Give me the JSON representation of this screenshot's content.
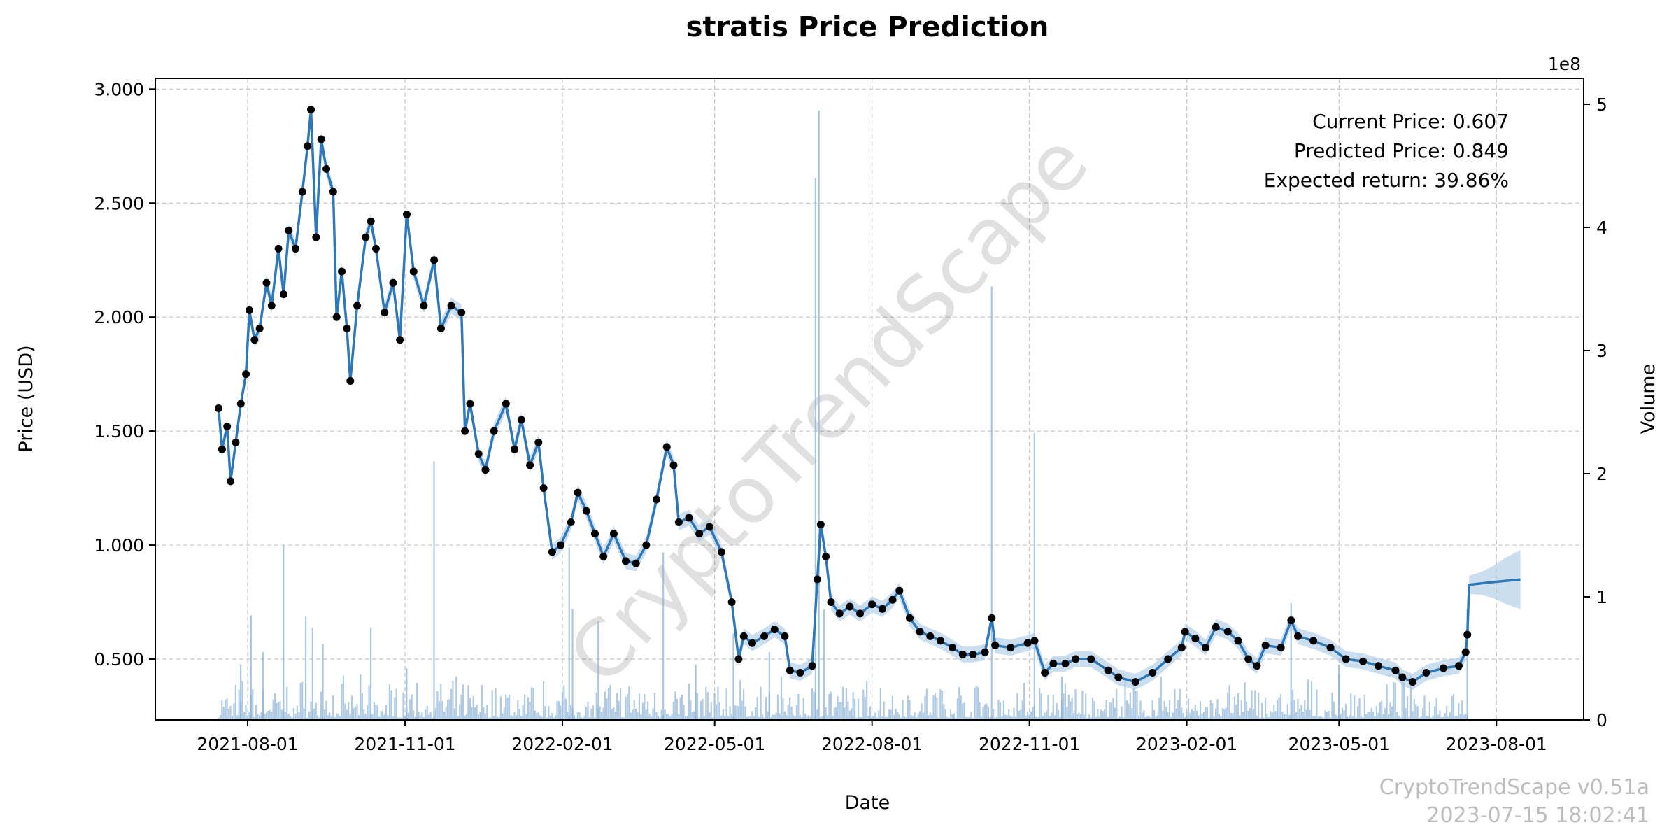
{
  "chart_data": {
    "type": "line",
    "title": "stratis Price Prediction",
    "xlabel": "Date",
    "ylabel": "Price (USD)",
    "y2label": "Volume",
    "y2_offset_label": "1e8",
    "xlim": [
      "2021-06-08",
      "2023-09-21"
    ],
    "ylim": [
      0.233,
      3.047
    ],
    "y2lim": [
      0,
      5.21
    ],
    "grid": true,
    "x_ticks": [
      "2021-08-01",
      "2021-11-01",
      "2022-02-01",
      "2022-05-01",
      "2022-08-01",
      "2022-11-01",
      "2023-02-01",
      "2023-05-01",
      "2023-08-01"
    ],
    "y_ticks": [
      "0.500",
      "1.000",
      "1.500",
      "2.000",
      "2.500",
      "3.000"
    ],
    "y_tick_values": [
      0.5,
      1.0,
      1.5,
      2.0,
      2.5,
      3.0
    ],
    "y2_ticks": [
      "0",
      "1",
      "2",
      "3",
      "4",
      "5"
    ],
    "annotations": [
      "Current Price: 0.607",
      "Predicted Price: 0.849",
      "Expected return: 39.86%"
    ],
    "watermark": "CryptoTrendScape",
    "footer": [
      "CryptoTrendScape v0.51a",
      "2023-07-15 18:02:41"
    ],
    "colors": {
      "line": "#2f78b8",
      "band": "#a9c8e6",
      "volume": "#8db3d6",
      "dots": "#000000"
    },
    "price_series": [
      [
        "2021-07-15",
        1.6
      ],
      [
        "2021-07-17",
        1.42
      ],
      [
        "2021-07-20",
        1.52
      ],
      [
        "2021-07-22",
        1.28
      ],
      [
        "2021-07-25",
        1.45
      ],
      [
        "2021-07-28",
        1.62
      ],
      [
        "2021-07-31",
        1.75
      ],
      [
        "2021-08-02",
        2.03
      ],
      [
        "2021-08-05",
        1.9
      ],
      [
        "2021-08-08",
        1.95
      ],
      [
        "2021-08-12",
        2.15
      ],
      [
        "2021-08-15",
        2.05
      ],
      [
        "2021-08-19",
        2.3
      ],
      [
        "2021-08-22",
        2.1
      ],
      [
        "2021-08-25",
        2.38
      ],
      [
        "2021-08-29",
        2.3
      ],
      [
        "2021-09-02",
        2.55
      ],
      [
        "2021-09-05",
        2.75
      ],
      [
        "2021-09-07",
        2.91
      ],
      [
        "2021-09-10",
        2.35
      ],
      [
        "2021-09-13",
        2.78
      ],
      [
        "2021-09-16",
        2.65
      ],
      [
        "2021-09-20",
        2.55
      ],
      [
        "2021-09-22",
        2.0
      ],
      [
        "2021-09-25",
        2.2
      ],
      [
        "2021-09-28",
        1.95
      ],
      [
        "2021-09-30",
        1.72
      ],
      [
        "2021-10-04",
        2.05
      ],
      [
        "2021-10-09",
        2.35
      ],
      [
        "2021-10-12",
        2.42
      ],
      [
        "2021-10-15",
        2.3
      ],
      [
        "2021-10-20",
        2.02
      ],
      [
        "2021-10-25",
        2.15
      ],
      [
        "2021-10-29",
        1.9
      ],
      [
        "2021-11-02",
        2.45
      ],
      [
        "2021-11-06",
        2.2
      ],
      [
        "2021-11-12",
        2.05
      ],
      [
        "2021-11-18",
        2.25
      ],
      [
        "2021-11-22",
        1.95
      ],
      [
        "2021-11-28",
        2.05
      ],
      [
        "2021-12-04",
        2.02
      ],
      [
        "2021-12-06",
        1.5
      ],
      [
        "2021-12-09",
        1.62
      ],
      [
        "2021-12-14",
        1.4
      ],
      [
        "2021-12-18",
        1.33
      ],
      [
        "2021-12-23",
        1.5
      ],
      [
        "2021-12-30",
        1.62
      ],
      [
        "2022-01-04",
        1.42
      ],
      [
        "2022-01-08",
        1.55
      ],
      [
        "2022-01-13",
        1.35
      ],
      [
        "2022-01-18",
        1.45
      ],
      [
        "2022-01-21",
        1.25
      ],
      [
        "2022-01-26",
        0.97
      ],
      [
        "2022-01-31",
        1.0
      ],
      [
        "2022-02-06",
        1.1
      ],
      [
        "2022-02-10",
        1.23
      ],
      [
        "2022-02-15",
        1.15
      ],
      [
        "2022-02-20",
        1.05
      ],
      [
        "2022-02-25",
        0.95
      ],
      [
        "2022-03-03",
        1.05
      ],
      [
        "2022-03-10",
        0.93
      ],
      [
        "2022-03-16",
        0.92
      ],
      [
        "2022-03-22",
        1.0
      ],
      [
        "2022-03-28",
        1.2
      ],
      [
        "2022-04-03",
        1.43
      ],
      [
        "2022-04-07",
        1.35
      ],
      [
        "2022-04-10",
        1.1
      ],
      [
        "2022-04-16",
        1.12
      ],
      [
        "2022-04-22",
        1.05
      ],
      [
        "2022-04-28",
        1.08
      ],
      [
        "2022-05-05",
        0.97
      ],
      [
        "2022-05-11",
        0.75
      ],
      [
        "2022-05-15",
        0.5
      ],
      [
        "2022-05-18",
        0.6
      ],
      [
        "2022-05-23",
        0.57
      ],
      [
        "2022-05-30",
        0.6
      ],
      [
        "2022-06-05",
        0.63
      ],
      [
        "2022-06-11",
        0.6
      ],
      [
        "2022-06-14",
        0.45
      ],
      [
        "2022-06-20",
        0.44
      ],
      [
        "2022-06-27",
        0.47
      ],
      [
        "2022-06-30",
        0.85
      ],
      [
        "2022-07-02",
        1.09
      ],
      [
        "2022-07-05",
        0.95
      ],
      [
        "2022-07-08",
        0.75
      ],
      [
        "2022-07-13",
        0.7
      ],
      [
        "2022-07-19",
        0.73
      ],
      [
        "2022-07-25",
        0.7
      ],
      [
        "2022-08-01",
        0.74
      ],
      [
        "2022-08-07",
        0.72
      ],
      [
        "2022-08-13",
        0.76
      ],
      [
        "2022-08-17",
        0.8
      ],
      [
        "2022-08-23",
        0.68
      ],
      [
        "2022-08-29",
        0.62
      ],
      [
        "2022-09-04",
        0.6
      ],
      [
        "2022-09-10",
        0.58
      ],
      [
        "2022-09-17",
        0.55
      ],
      [
        "2022-09-23",
        0.52
      ],
      [
        "2022-09-29",
        0.52
      ],
      [
        "2022-10-06",
        0.53
      ],
      [
        "2022-10-10",
        0.68
      ],
      [
        "2022-10-12",
        0.56
      ],
      [
        "2022-10-21",
        0.55
      ],
      [
        "2022-10-31",
        0.57
      ],
      [
        "2022-11-04",
        0.58
      ],
      [
        "2022-11-10",
        0.44
      ],
      [
        "2022-11-15",
        0.48
      ],
      [
        "2022-11-22",
        0.48
      ],
      [
        "2022-11-28",
        0.5
      ],
      [
        "2022-12-07",
        0.5
      ],
      [
        "2022-12-17",
        0.45
      ],
      [
        "2022-12-23",
        0.42
      ],
      [
        "2023-01-02",
        0.4
      ],
      [
        "2023-01-12",
        0.44
      ],
      [
        "2023-01-21",
        0.5
      ],
      [
        "2023-01-29",
        0.55
      ],
      [
        "2023-01-31",
        0.62
      ],
      [
        "2023-02-06",
        0.59
      ],
      [
        "2023-02-12",
        0.55
      ],
      [
        "2023-02-18",
        0.64
      ],
      [
        "2023-02-25",
        0.62
      ],
      [
        "2023-03-03",
        0.58
      ],
      [
        "2023-03-09",
        0.5
      ],
      [
        "2023-03-14",
        0.47
      ],
      [
        "2023-03-19",
        0.56
      ],
      [
        "2023-03-28",
        0.55
      ],
      [
        "2023-04-03",
        0.67
      ],
      [
        "2023-04-07",
        0.6
      ],
      [
        "2023-04-16",
        0.58
      ],
      [
        "2023-04-26",
        0.55
      ],
      [
        "2023-05-05",
        0.5
      ],
      [
        "2023-05-15",
        0.49
      ],
      [
        "2023-05-24",
        0.47
      ],
      [
        "2023-06-03",
        0.45
      ],
      [
        "2023-06-07",
        0.42
      ],
      [
        "2023-06-13",
        0.4
      ],
      [
        "2023-06-21",
        0.44
      ],
      [
        "2023-07-01",
        0.46
      ],
      [
        "2023-07-10",
        0.47
      ],
      [
        "2023-07-14",
        0.53
      ],
      [
        "2023-07-15",
        0.607
      ]
    ],
    "forecast_series": [
      [
        "2023-07-16",
        0.826,
        0.04
      ],
      [
        "2023-07-23",
        0.832,
        0.05
      ],
      [
        "2023-07-30",
        0.838,
        0.07
      ],
      [
        "2023-08-06",
        0.843,
        0.1
      ],
      [
        "2023-08-15",
        0.849,
        0.13
      ]
    ],
    "band_halfwidth": 0.035,
    "volume_unit": "1e8",
    "volume_baseline": 0.12,
    "volume_spikes": [
      [
        "2021-07-28",
        0.45
      ],
      [
        "2021-08-03",
        0.85
      ],
      [
        "2021-08-10",
        0.55
      ],
      [
        "2021-08-22",
        1.42
      ],
      [
        "2021-09-04",
        0.84
      ],
      [
        "2021-09-08",
        0.75
      ],
      [
        "2021-09-14",
        0.62
      ],
      [
        "2021-10-12",
        0.75
      ],
      [
        "2021-11-02",
        0.42
      ],
      [
        "2021-11-18",
        2.1
      ],
      [
        "2022-02-05",
        1.4
      ],
      [
        "2022-02-07",
        0.9
      ],
      [
        "2022-02-22",
        0.8
      ],
      [
        "2022-04-01",
        1.36
      ],
      [
        "2022-04-20",
        0.45
      ],
      [
        "2022-05-12",
        0.7
      ],
      [
        "2022-06-02",
        0.55
      ],
      [
        "2022-06-29",
        4.4
      ],
      [
        "2022-07-01",
        4.95
      ],
      [
        "2022-07-04",
        0.9
      ],
      [
        "2022-10-10",
        3.52
      ],
      [
        "2022-11-04",
        2.33
      ],
      [
        "2022-11-20",
        0.35
      ],
      [
        "2023-04-03",
        0.95
      ],
      [
        "2023-05-01",
        0.45
      ],
      [
        "2023-07-15",
        0.9
      ]
    ]
  }
}
